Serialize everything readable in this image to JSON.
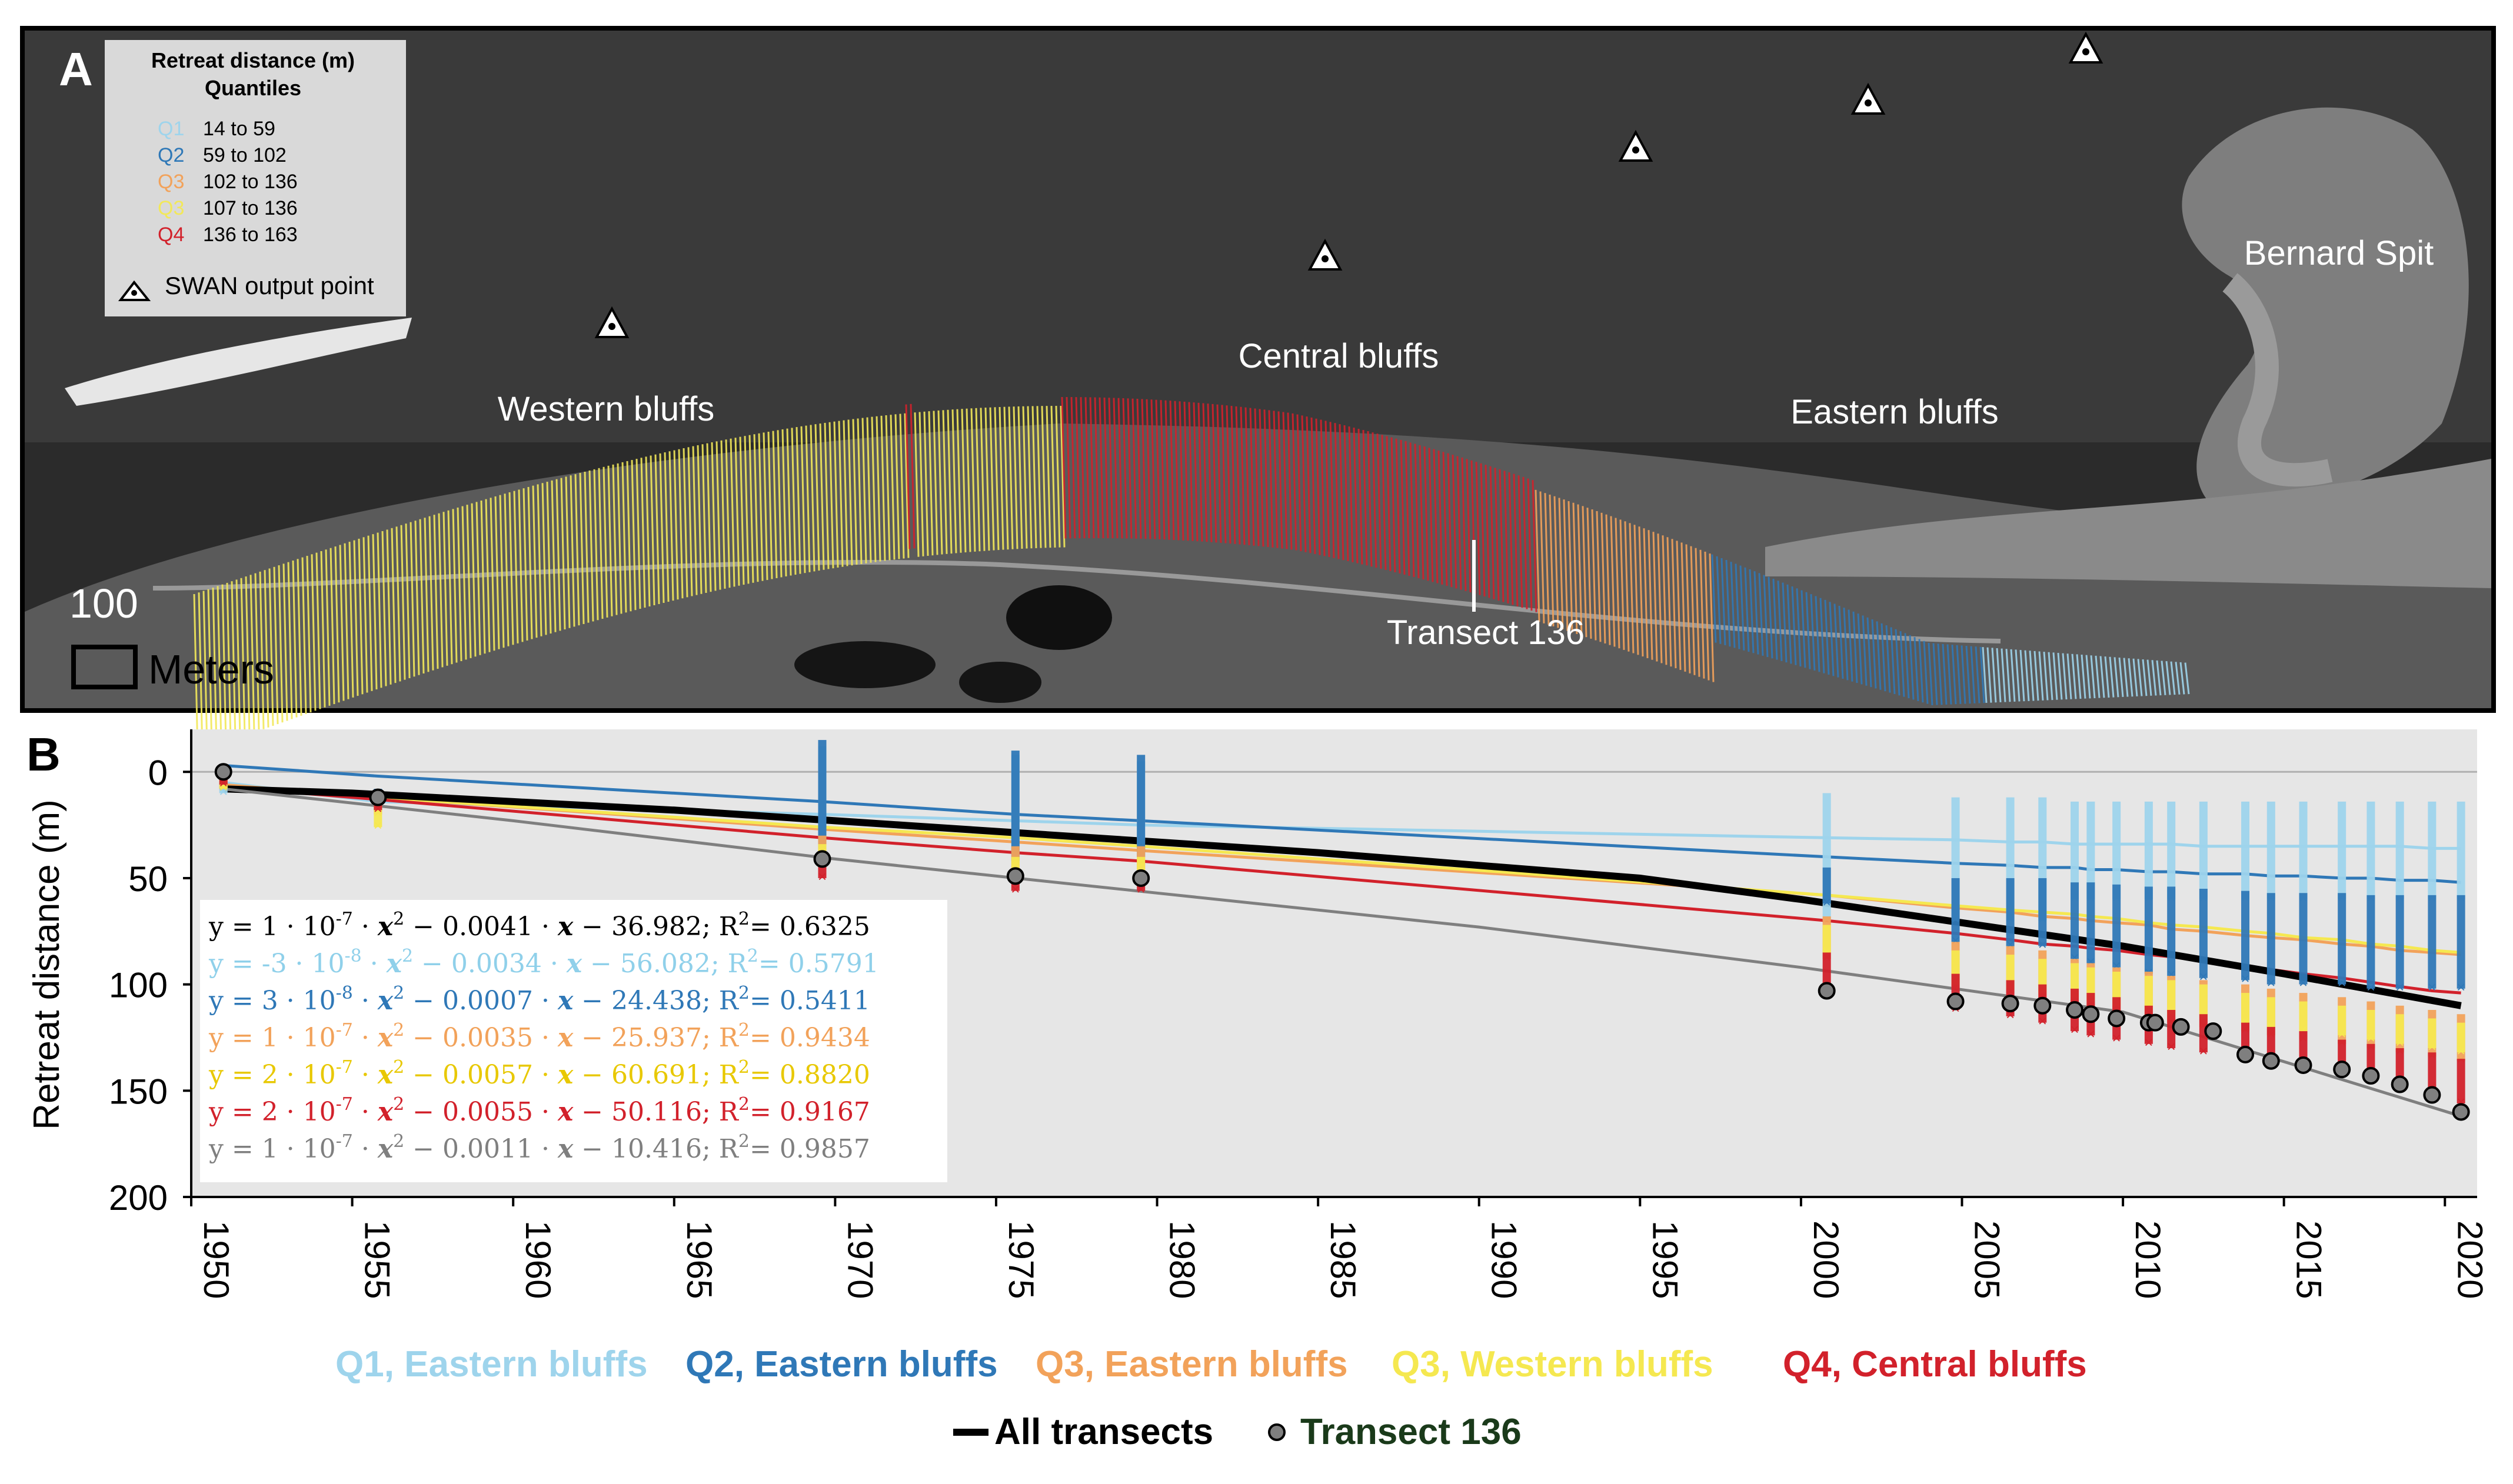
{
  "panel_a": {
    "panel_label": "A",
    "legend": {
      "title_line1": "Retreat distance (m)",
      "title_line2": "Quantiles",
      "items": [
        {
          "code": "Q1",
          "range": "14 to   59",
          "color": "#9ed4ec"
        },
        {
          "code": "Q2",
          "range": "59 to 102",
          "color": "#2f78b7"
        },
        {
          "code": "Q3",
          "range": "102 to 136",
          "color": "#f2a25a"
        },
        {
          "code": "Q3",
          "range": "107 to 136",
          "color": "#f2e85a"
        },
        {
          "code": "Q4",
          "range": "136 to 163",
          "color": "#d2212b"
        }
      ],
      "swan_label": "SWAN output point"
    },
    "labels": {
      "western": "Western bluffs",
      "central": "Central bluffs",
      "eastern": "Eastern bluffs",
      "spit": "Bernard Spit",
      "transect": "Transect 136"
    },
    "scale_bar": {
      "value": "100",
      "unit": "Meters"
    }
  },
  "chart_data": {
    "type": "scatter",
    "panel_label": "B",
    "ylabel": "Retreat distance (m)",
    "xlim": [
      1950,
      2021
    ],
    "ylim": [
      200,
      -20
    ],
    "y_inverted": true,
    "x_ticks": [
      "1950",
      "1955",
      "1960",
      "1965",
      "1970",
      "1975",
      "1980",
      "1985",
      "1990",
      "1995",
      "2000",
      "2005",
      "2010",
      "2015",
      "2020"
    ],
    "y_ticks": [
      "0",
      "50",
      "100",
      "150",
      "200"
    ],
    "grid": "horizontal line at 0",
    "equations": [
      {
        "a": "1",
        "exp": "-7",
        "b": "0.0041",
        "c": "36.982",
        "r2": "0.6325",
        "color": "#000000"
      },
      {
        "a": "-3",
        "exp": "-8",
        "b": "0.0034",
        "c": "56.082",
        "r2": "0.5791",
        "color": "#8fd0ea"
      },
      {
        "a": "3",
        "exp": "-8",
        "b": "0.0007",
        "c": "24.438",
        "r2": "0.5411",
        "color": "#2f78b7"
      },
      {
        "a": "1",
        "exp": "-7",
        "b": "0.0035",
        "c": "25.937",
        "r2": "0.9434",
        "color": "#f2a25a"
      },
      {
        "a": "2",
        "exp": "-7",
        "b": "0.0057",
        "c": "60.691",
        "r2": "0.8820",
        "color": "#e8c800"
      },
      {
        "a": "2",
        "exp": "-7",
        "b": "0.0055",
        "c": "50.116",
        "r2": "0.9167",
        "color": "#d2212b"
      },
      {
        "a": "1",
        "exp": "-7",
        "b": "0.0011",
        "c": "10.416",
        "r2": "0.9857",
        "color": "#7f7f7f"
      }
    ],
    "series": [
      {
        "name": "Q1, Eastern bluffs",
        "color": "#9ed4ec",
        "x": [
          1951,
          1955.8,
          1969.6,
          1975.6,
          1979.5,
          2000.8,
          2004.8,
          2006.5,
          2007.5,
          2008.5,
          2009,
          2009.8,
          2010.8,
          2011.5,
          2012.5,
          2013.8,
          2014.6,
          2015.6,
          2016.8,
          2017.7,
          2018.6,
          2019.6,
          2020.5
        ],
        "y_min": [
          0,
          8,
          -12,
          -8,
          -5,
          10,
          12,
          12,
          12,
          14,
          14,
          14,
          14,
          14,
          14,
          14,
          14,
          14,
          14,
          14,
          14,
          14,
          14
        ],
        "y_max": [
          10,
          16,
          32,
          38,
          34,
          70,
          70,
          70,
          70,
          60,
          60,
          60,
          60,
          60,
          60,
          60,
          60,
          60,
          60,
          60,
          60,
          60,
          60
        ],
        "fit": [
          5,
          14,
          20,
          23,
          25,
          31,
          32,
          33,
          33,
          34,
          34,
          34,
          34,
          34,
          35,
          35,
          35,
          35,
          35,
          35,
          35,
          36,
          36
        ]
      },
      {
        "name": "Q2, Eastern bluffs",
        "color": "#2f78b7",
        "x": [
          1951,
          1955.8,
          1969.6,
          1975.6,
          1979.5,
          2000.8,
          2004.8,
          2006.5,
          2007.5,
          2008.5,
          2009,
          2009.8,
          2010.8,
          2011.5,
          2012.5,
          2013.8,
          2014.6,
          2015.6,
          2016.8,
          2017.7,
          2018.6,
          2019.6,
          2020.5
        ],
        "y_min": [
          0,
          8,
          -15,
          -10,
          -8,
          45,
          50,
          50,
          50,
          52,
          52,
          53,
          54,
          54,
          55,
          56,
          57,
          57,
          57,
          58,
          58,
          58,
          58
        ],
        "y_max": [
          8,
          16,
          36,
          42,
          40,
          62,
          80,
          82,
          82,
          88,
          90,
          92,
          95,
          96,
          97,
          98,
          100,
          100,
          100,
          102,
          102,
          102,
          102
        ],
        "fit": [
          -3,
          2,
          14,
          20,
          23,
          40,
          43,
          44,
          45,
          45,
          46,
          46,
          47,
          47,
          48,
          48,
          49,
          49,
          50,
          50,
          51,
          51,
          52
        ]
      },
      {
        "name": "Q3, Eastern bluffs",
        "color": "#f2a25a",
        "x": [
          1951,
          1955.8,
          1969.6,
          1975.6,
          1979.5,
          2000.8,
          2004.8,
          2006.5,
          2007.5,
          2008.5,
          2009,
          2009.8,
          2010.8,
          2011.5,
          2012.5,
          2013.8,
          2014.6,
          2015.6,
          2016.8,
          2017.7,
          2018.6,
          2019.6,
          2020.5
        ],
        "y_min": [
          0,
          10,
          30,
          35,
          35,
          68,
          80,
          82,
          84,
          88,
          90,
          92,
          94,
          96,
          98,
          100,
          102,
          104,
          106,
          108,
          110,
          112,
          114
        ],
        "y_max": [
          8,
          20,
          42,
          48,
          46,
          88,
          102,
          104,
          106,
          110,
          112,
          114,
          116,
          118,
          120,
          122,
          124,
          126,
          128,
          130,
          132,
          134,
          136
        ],
        "fit": [
          6,
          12,
          27,
          33,
          37,
          58,
          64,
          66,
          68,
          69,
          70,
          71,
          72,
          74,
          75,
          77,
          78,
          79,
          81,
          82,
          84,
          85,
          86
        ]
      },
      {
        "name": "Q3, Western bluffs",
        "color": "#f5e850",
        "x": [
          1951,
          1955.8,
          1969.6,
          1975.6,
          1979.5,
          2000.8,
          2004.8,
          2006.5,
          2007.5,
          2008.5,
          2009,
          2009.8,
          2010.8,
          2011.5,
          2012.5,
          2013.8,
          2014.6,
          2015.6,
          2016.8,
          2017.7,
          2018.6,
          2019.6,
          2020.5
        ],
        "y_min": [
          0,
          12,
          34,
          40,
          40,
          72,
          84,
          86,
          88,
          90,
          92,
          94,
          96,
          98,
          100,
          104,
          106,
          108,
          110,
          112,
          114,
          116,
          118
        ],
        "y_max": [
          8,
          26,
          42,
          48,
          48,
          85,
          100,
          102,
          104,
          106,
          108,
          110,
          112,
          114,
          116,
          118,
          120,
          122,
          124,
          126,
          128,
          130,
          132
        ],
        "fit": [
          7,
          12,
          26,
          31,
          35,
          58,
          63,
          65,
          66,
          67,
          68,
          69,
          71,
          72,
          73,
          75,
          76,
          78,
          79,
          81,
          82,
          84,
          85
        ]
      },
      {
        "name": "Q4, Central bluffs",
        "color": "#d2212b",
        "x": [
          1951,
          1955.8,
          1969.6,
          1975.6,
          1979.5,
          2000.8,
          2004.8,
          2006.5,
          2007.5,
          2008.5,
          2009,
          2009.8,
          2010.8,
          2011.5,
          2012.5,
          2013.8,
          2014.6,
          2015.6,
          2016.8,
          2017.7,
          2018.6,
          2019.6,
          2020.5
        ],
        "y_min": [
          0,
          12,
          42,
          48,
          48,
          85,
          95,
          98,
          100,
          102,
          104,
          106,
          110,
          112,
          114,
          118,
          120,
          122,
          126,
          128,
          130,
          132,
          135
        ],
        "y_max": [
          6,
          18,
          50,
          56,
          56,
          105,
          112,
          115,
          118,
          122,
          124,
          126,
          128,
          130,
          132,
          135,
          138,
          140,
          142,
          145,
          150,
          152,
          156
        ],
        "fit": [
          7,
          13,
          31,
          38,
          42,
          70,
          76,
          79,
          81,
          82,
          83,
          84,
          86,
          87,
          89,
          91,
          93,
          95,
          97,
          99,
          101,
          103,
          104
        ]
      },
      {
        "name": "All transects",
        "color": "#000000",
        "fit_x": [
          1951,
          1955,
          1960,
          1965,
          1970,
          1975,
          1980,
          1985,
          1990,
          1995,
          2000,
          2005,
          2010,
          2015,
          2020.5
        ],
        "fit": [
          8,
          10,
          14,
          18,
          23,
          28,
          33,
          38,
          44,
          50,
          60,
          71,
          82,
          95,
          110
        ]
      },
      {
        "name": "Transect 136",
        "color": "#7f7f7f",
        "x": [
          1951,
          1955.8,
          1969.6,
          1975.6,
          1979.5,
          2000.8,
          2004.8,
          2006.5,
          2007.5,
          2008.5,
          2009,
          2009.8,
          2010.8,
          2011,
          2011.8,
          2012.8,
          2013.8,
          2014.6,
          2015.6,
          2016.8,
          2017.7,
          2018.6,
          2019.6,
          2020.5
        ],
        "y": [
          0,
          12,
          41,
          49,
          50,
          103,
          108,
          109,
          110,
          112,
          114,
          116,
          118,
          118,
          120,
          122,
          133,
          136,
          138,
          140,
          143,
          147,
          152,
          160
        ],
        "fit_x": [
          1951,
          1960,
          1970,
          1980,
          1990,
          2000,
          2010,
          2020.5
        ],
        "fit": [
          8,
          23,
          41,
          57,
          73,
          92,
          113,
          162
        ]
      }
    ]
  }
}
